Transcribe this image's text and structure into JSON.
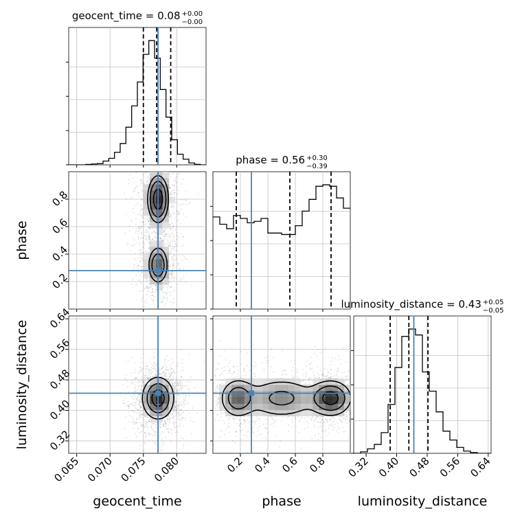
{
  "chart_data": {
    "type": "corner",
    "colors": {
      "truth": "#4682b4",
      "hist": "#000000",
      "quantile": "#000000",
      "grid": "#c0c0c0"
    },
    "grid": true,
    "parameters": [
      {
        "name": "geocent_time",
        "xlabel": "geocent_time",
        "title": {
          "main": "geocent_time = 0.08",
          "sup": "+0.00",
          "sub": "−0.00"
        },
        "range": [
          0.0638,
          0.0844
        ],
        "ticks": [
          0.065,
          0.07,
          0.075,
          0.08
        ],
        "tick_labels": [
          "0.065",
          "0.070",
          "0.075",
          "0.080"
        ],
        "truth": 0.0772,
        "quantiles": [
          0.075,
          0.077,
          0.0791
        ]
      },
      {
        "name": "phase",
        "xlabel": "phase",
        "ylabel": "phase",
        "title": {
          "main": "phase = 0.56",
          "sup": "+0.30",
          "sub": "−0.39"
        },
        "range": [
          0.0,
          1.0
        ],
        "ticks": [
          0.2,
          0.4,
          0.6,
          0.8
        ],
        "tick_labels": [
          "0.2",
          "0.4",
          "0.6",
          "0.8"
        ],
        "truth": 0.28,
        "quantiles": [
          0.17,
          0.56,
          0.86
        ]
      },
      {
        "name": "luminosity_distance",
        "xlabel": "luminosity_distance",
        "ylabel": "luminosity_distance",
        "title": {
          "main": "luminosity_distance = 0.43",
          "sup": "+0.05",
          "sub": "−0.05"
        },
        "range": [
          0.2875,
          0.6475
        ],
        "ticks": [
          0.32,
          0.4,
          0.48,
          0.56,
          0.64
        ],
        "tick_labels": [
          "0.32",
          "0.40",
          "0.48",
          "0.56",
          "0.64"
        ],
        "truth": 0.445,
        "quantiles": [
          0.383,
          0.432,
          0.482
        ]
      }
    ],
    "histograms": [
      {
        "param": "geocent_time",
        "x_start": 0.0638,
        "x_end": 0.0844,
        "counts": [
          0,
          0,
          0,
          0.003,
          0.007,
          0.01,
          0.03,
          0.052,
          0.1,
          0.17,
          0.3,
          0.47,
          0.66,
          0.88,
          0.99,
          0.85,
          0.6,
          0.38,
          0.2,
          0.085,
          0.045,
          0.015,
          0.004,
          0
        ]
      },
      {
        "param": "phase",
        "x_start": 0.0,
        "x_end": 1.0,
        "counts": [
          0.63,
          0.58,
          0.55,
          0.64,
          0.62,
          0.59,
          0.6,
          0.62,
          0.52,
          0.52,
          0.51,
          0.51,
          0.57,
          0.67,
          0.75,
          0.84,
          0.85,
          0.84,
          0.76,
          0.69
        ]
      },
      {
        "param": "luminosity_distance",
        "x_start": 0.2875,
        "x_end": 0.6475,
        "counts": [
          0,
          0.01,
          0.03,
          0.06,
          0.14,
          0.33,
          0.58,
          0.79,
          0.84,
          0.8,
          0.55,
          0.42,
          0.28,
          0.15,
          0.09,
          0.04,
          0.015,
          0.005,
          0,
          0
        ]
      }
    ],
    "density_panels": [
      {
        "x": "geocent_time",
        "y": "phase",
        "blobs": [
          {
            "cx": 0.0772,
            "cy": 0.8,
            "sx": 0.001,
            "sy": 0.11,
            "w": 1.0
          },
          {
            "cx": 0.0772,
            "cy": 0.32,
            "sx": 0.001,
            "sy": 0.09,
            "w": 0.75
          }
        ],
        "contour_levels": [
          0.3,
          0.5,
          0.8
        ]
      },
      {
        "x": "geocent_time",
        "y": "luminosity_distance",
        "blobs": [
          {
            "cx": 0.0772,
            "cy": 0.432,
            "sx": 0.0012,
            "sy": 0.028,
            "w": 1.0
          }
        ],
        "contour_levels": [
          0.15,
          0.4,
          0.75
        ]
      },
      {
        "x": "phase",
        "y": "luminosity_distance",
        "blobs": [
          {
            "cx": 0.86,
            "cy": 0.432,
            "sx": 0.08,
            "sy": 0.025,
            "w": 1.0
          },
          {
            "cx": 0.18,
            "cy": 0.432,
            "sx": 0.07,
            "sy": 0.028,
            "w": 0.7
          },
          {
            "cx": 0.5,
            "cy": 0.432,
            "sx": 0.15,
            "sy": 0.03,
            "w": 0.55
          }
        ],
        "contour_levels": [
          0.2,
          0.45,
          0.8
        ]
      }
    ]
  }
}
